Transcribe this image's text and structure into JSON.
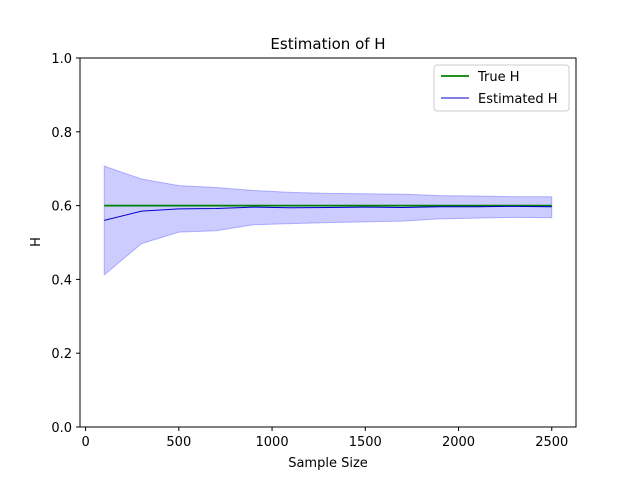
{
  "chart_data": {
    "type": "line",
    "title": "Estimation of H",
    "xlabel": "Sample Size",
    "ylabel": "H",
    "xlim": [
      -30,
      2630
    ],
    "ylim": [
      0.0,
      1.0
    ],
    "xticks": [
      0,
      500,
      1000,
      1500,
      2000,
      2500
    ],
    "yticks": [
      0.0,
      0.2,
      0.4,
      0.6,
      0.8,
      1.0
    ],
    "xtick_labels": [
      "0",
      "500",
      "1000",
      "1500",
      "2000",
      "2500"
    ],
    "ytick_labels": [
      "0.0",
      "0.2",
      "0.4",
      "0.6",
      "0.8",
      "1.0"
    ],
    "grid": false,
    "legend_position": "upper-right",
    "x": [
      100,
      300,
      500,
      700,
      900,
      1100,
      1300,
      1500,
      1700,
      1900,
      2100,
      2300,
      2500
    ],
    "series": [
      {
        "name": "True H",
        "color": "#008000",
        "values": [
          0.6,
          0.6,
          0.6,
          0.6,
          0.6,
          0.6,
          0.6,
          0.6,
          0.6,
          0.6,
          0.6,
          0.6,
          0.6
        ]
      },
      {
        "name": "Estimated H",
        "color": "#0000cc",
        "values": [
          0.56,
          0.585,
          0.591,
          0.592,
          0.596,
          0.594,
          0.595,
          0.596,
          0.595,
          0.597,
          0.597,
          0.598,
          0.597
        ]
      }
    ],
    "band": {
      "color": "#0000ff",
      "opacity": 0.2,
      "upper": [
        0.707,
        0.672,
        0.654,
        0.649,
        0.641,
        0.636,
        0.633,
        0.632,
        0.631,
        0.627,
        0.626,
        0.624,
        0.624
      ],
      "lower": [
        0.412,
        0.497,
        0.528,
        0.532,
        0.548,
        0.551,
        0.554,
        0.556,
        0.558,
        0.564,
        0.566,
        0.568,
        0.567
      ]
    }
  }
}
